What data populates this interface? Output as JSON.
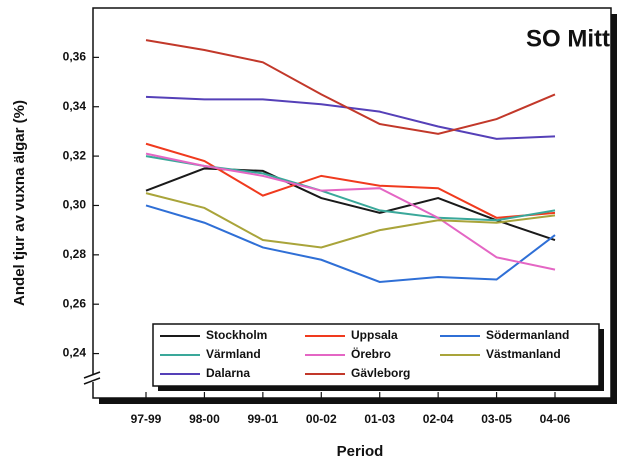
{
  "chart_data": {
    "type": "line",
    "title": "SO Mitt",
    "xlabel": "Period",
    "ylabel": "Andel tjur av vuxna älgar (%)",
    "categories": [
      "97-99",
      "98-00",
      "99-01",
      "00-02",
      "01-03",
      "02-04",
      "03-05",
      "04-06"
    ],
    "ylim": [
      0.222,
      0.38
    ],
    "yticks": [
      {
        "value": 0.24,
        "label": "0,24"
      },
      {
        "value": 0.26,
        "label": "0,26"
      },
      {
        "value": 0.28,
        "label": "0,28"
      },
      {
        "value": 0.3,
        "label": "0,30"
      },
      {
        "value": 0.32,
        "label": "0,32"
      },
      {
        "value": 0.34,
        "label": "0,34"
      },
      {
        "value": 0.36,
        "label": "0,36"
      }
    ],
    "series": [
      {
        "name": "Stockholm",
        "color": "#1a1a1a",
        "values": [
          0.306,
          0.315,
          0.314,
          0.303,
          0.297,
          0.303,
          0.294,
          0.286
        ]
      },
      {
        "name": "Uppsala",
        "color": "#f03a1e",
        "values": [
          0.325,
          0.318,
          0.304,
          0.312,
          0.308,
          0.307,
          0.295,
          0.297
        ]
      },
      {
        "name": "Södermanland",
        "color": "#2f6fd6",
        "values": [
          0.3,
          0.293,
          0.283,
          0.278,
          0.269,
          0.271,
          0.27,
          0.288
        ]
      },
      {
        "name": "Värmland",
        "color": "#3aa89a",
        "values": [
          0.32,
          0.316,
          0.313,
          0.306,
          0.298,
          0.295,
          0.294,
          0.298
        ]
      },
      {
        "name": "Örebro",
        "color": "#e466c4",
        "values": [
          0.321,
          0.316,
          0.312,
          0.306,
          0.307,
          0.295,
          0.279,
          0.274
        ]
      },
      {
        "name": "Västmanland",
        "color": "#a9a43a",
        "values": [
          0.305,
          0.299,
          0.286,
          0.283,
          0.29,
          0.294,
          0.293,
          0.296
        ]
      },
      {
        "name": "Dalarna",
        "color": "#5540b8",
        "values": [
          0.344,
          0.343,
          0.343,
          0.341,
          0.338,
          0.332,
          0.327,
          0.328
        ]
      },
      {
        "name": "Gävleborg",
        "color": "#c2382a",
        "values": [
          0.367,
          0.363,
          0.358,
          0.345,
          0.333,
          0.329,
          0.335,
          0.345
        ]
      }
    ]
  }
}
